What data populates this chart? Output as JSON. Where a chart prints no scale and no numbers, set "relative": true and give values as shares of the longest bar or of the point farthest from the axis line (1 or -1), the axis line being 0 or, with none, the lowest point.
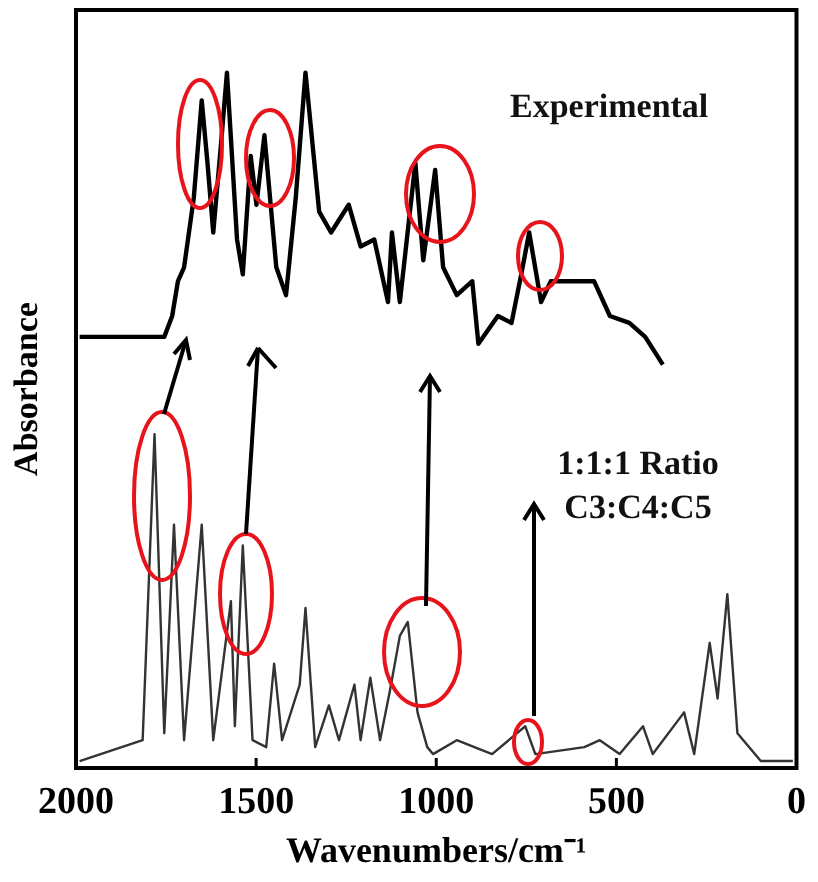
{
  "chart_data": {
    "type": "line",
    "relative": true,
    "xlabel": "Wavenumbers/cm⁻¹",
    "ylabel": "Absorbance",
    "xlim": [
      2000,
      0
    ],
    "xticks": [
      2000,
      1500,
      1000,
      500,
      0
    ],
    "tick_labels": "x",
    "grid": false,
    "legend": false,
    "marker": "none",
    "series": [
      {
        "name": "Experimental",
        "color": "#000000",
        "x": [
          1990,
          1755,
          1733,
          1717,
          1700,
          1673,
          1651,
          1635,
          1619,
          1597,
          1581,
          1553,
          1537,
          1515,
          1499,
          1477,
          1444,
          1417,
          1390,
          1363,
          1325,
          1292,
          1243,
          1210,
          1172,
          1134,
          1123,
          1101,
          1058,
          1036,
          1003,
          981,
          943,
          900,
          883,
          829,
          791,
          764,
          742,
          709,
          682,
          627,
          562,
          518,
          464,
          420,
          371
        ],
        "values": [
          0.62,
          0.62,
          0.65,
          0.7,
          0.72,
          0.82,
          0.96,
          0.87,
          0.77,
          0.9,
          1,
          0.76,
          0.71,
          0.88,
          0.81,
          0.91,
          0.72,
          0.68,
          0.82,
          1,
          0.8,
          0.77,
          0.81,
          0.75,
          0.76,
          0.67,
          0.77,
          0.67,
          0.87,
          0.73,
          0.86,
          0.72,
          0.68,
          0.7,
          0.61,
          0.65,
          0.64,
          0.71,
          0.77,
          0.67,
          0.7,
          0.7,
          0.7,
          0.65,
          0.64,
          0.62,
          0.58
        ]
      },
      {
        "name": "1:1:1 Ratio\nC3:C4:C5",
        "color": "#333333",
        "x": [
          1990,
          1815,
          1782,
          1755,
          1728,
          1700,
          1651,
          1619,
          1570,
          1559,
          1537,
          1510,
          1472,
          1450,
          1428,
          1379,
          1363,
          1336,
          1298,
          1270,
          1254,
          1227,
          1210,
          1183,
          1156,
          1129,
          1101,
          1079,
          1052,
          1025,
          1009,
          943,
          845,
          753,
          725,
          589,
          546,
          491,
          426,
          399,
          312,
          284,
          241,
          219,
          192,
          164,
          99,
          10
        ],
        "values": [
          0.01,
          0.04,
          0.48,
          0.05,
          0.35,
          0.04,
          0.35,
          0.04,
          0.24,
          0.06,
          0.32,
          0.04,
          0.03,
          0.15,
          0.04,
          0.12,
          0.23,
          0.03,
          0.09,
          0.04,
          0.07,
          0.12,
          0.04,
          0.13,
          0.04,
          0.11,
          0.19,
          0.21,
          0.08,
          0.03,
          0.02,
          0.04,
          0.02,
          0.06,
          0.02,
          0.03,
          0.04,
          0.02,
          0.06,
          0.02,
          0.08,
          0.02,
          0.18,
          0.1,
          0.25,
          0.05,
          0.01,
          0.01
        ]
      }
    ]
  }
}
